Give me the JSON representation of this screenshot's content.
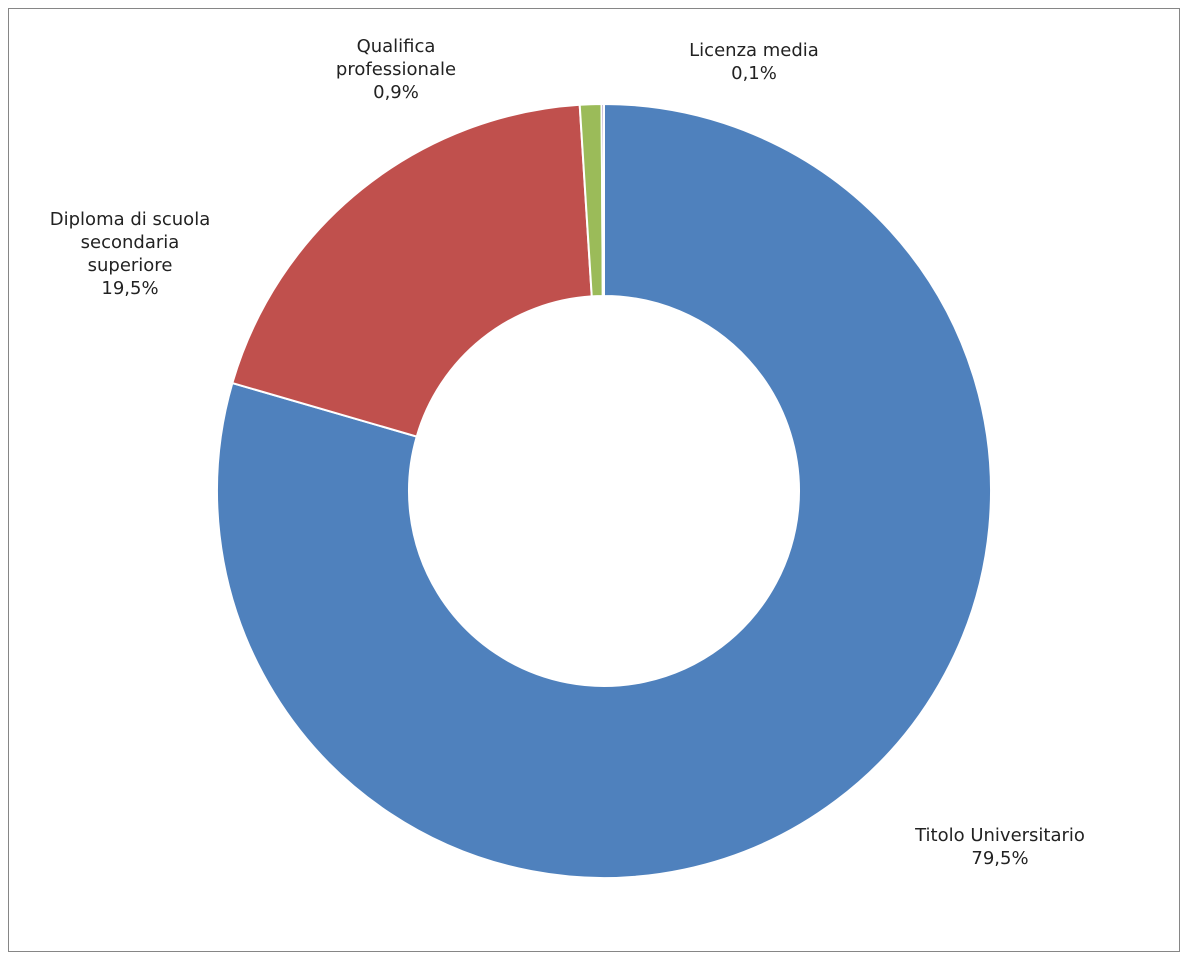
{
  "chart_data": {
    "type": "pie",
    "hole": true,
    "series": [
      {
        "values": [
          79.5,
          19.5,
          0.9,
          0.1
        ],
        "categories": [
          "Titolo Universitario",
          "Diploma di scuola secondaria superiore",
          "Qualifica professionale",
          "Licenza media"
        ],
        "colors": [
          "#4F81BD",
          "#C0504D",
          "#9BBB59",
          "#8064A2"
        ]
      }
    ],
    "data_labels": [
      {
        "lines": [
          "Titolo Universitario"
        ],
        "value": "79,5%"
      },
      {
        "lines": [
          "Diploma di scuola",
          "secondaria",
          "superiore"
        ],
        "value": "19,5%"
      },
      {
        "lines": [
          "Qualifica",
          "professionale"
        ],
        "value": "0,9%"
      },
      {
        "lines": [
          "Licenza media"
        ],
        "value": "0,1%"
      }
    ]
  }
}
